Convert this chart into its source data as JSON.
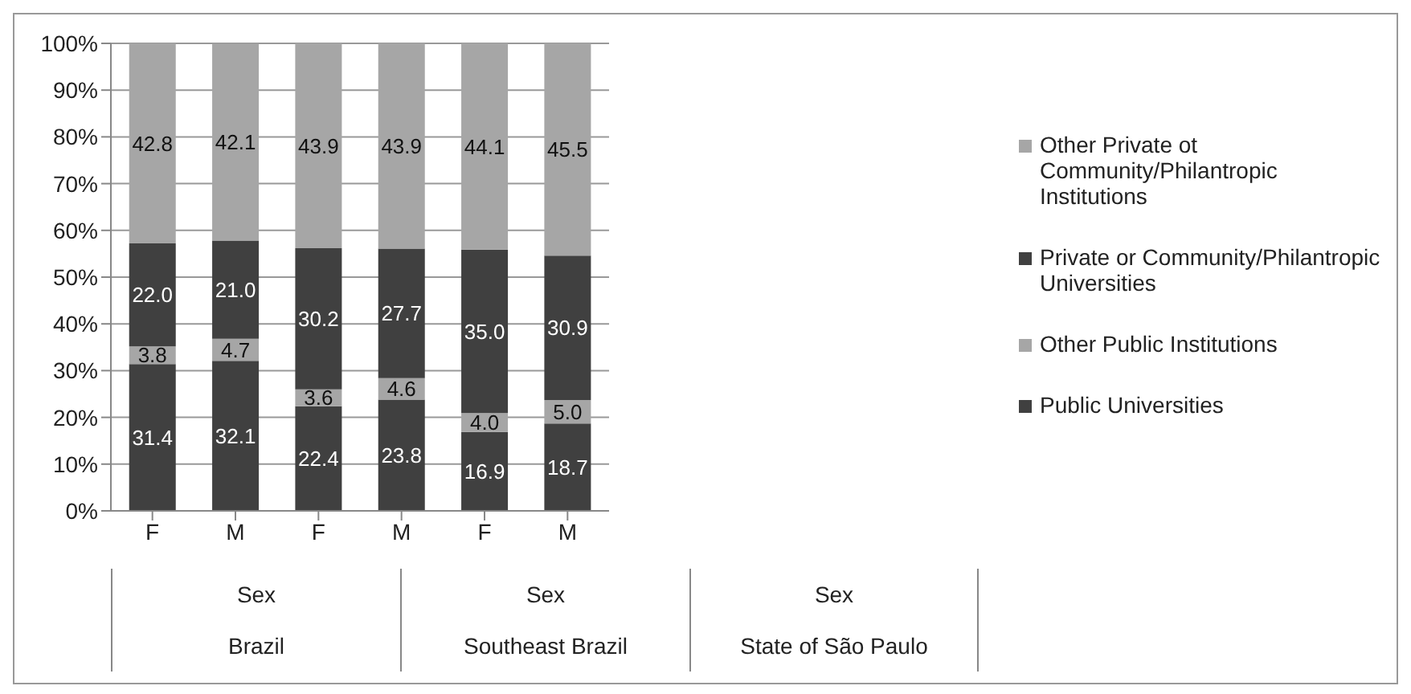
{
  "chart_data": {
    "type": "bar",
    "stacked": true,
    "categories": [
      "F",
      "M",
      "F",
      "M",
      "F",
      "M"
    ],
    "series": [
      {
        "name": "Public Universities",
        "color": "#404040",
        "values": [
          31.4,
          32.1,
          22.4,
          23.8,
          16.9,
          18.7
        ],
        "value_labels": [
          "31.4",
          "32.1",
          "22.4",
          "23.8",
          "16.9",
          "18.7"
        ]
      },
      {
        "name": "Other Public Institutions",
        "color": "#a6a6a6",
        "values": [
          3.8,
          4.7,
          3.6,
          4.6,
          4.0,
          5.0
        ],
        "value_labels": [
          "3.8",
          "4.7",
          "3.6",
          "4.6",
          "4.0",
          "5.0"
        ]
      },
      {
        "name": "Private or Community/Philantropic Universities",
        "color": "#404040",
        "values": [
          22.0,
          21.0,
          30.2,
          27.7,
          35.0,
          30.9
        ],
        "value_labels": [
          "22.0",
          "21.0",
          "30.2",
          "27.7",
          "35.0",
          "30.9"
        ]
      },
      {
        "name": "Other Private ot Community/Philantropic Institutions",
        "color": "#a6a6a6",
        "values": [
          42.8,
          42.1,
          43.9,
          43.9,
          44.1,
          45.5
        ],
        "value_labels": [
          "42.8",
          "42.1",
          "43.9",
          "43.9",
          "44.1",
          "45.5"
        ]
      }
    ],
    "annotations": [
      "Sex",
      "Sex",
      "Sex",
      "Brazil",
      "Southeast Brazil",
      "State of São Paulo"
    ],
    "ylim": [
      0,
      100
    ],
    "yticks": [
      {
        "value": 0,
        "label": "0%"
      },
      {
        "value": 10,
        "label": "10%"
      },
      {
        "value": 20,
        "label": "20%"
      },
      {
        "value": 30,
        "label": "30%"
      },
      {
        "value": 40,
        "label": "40%"
      },
      {
        "value": 50,
        "label": "50%"
      },
      {
        "value": 60,
        "label": "60%"
      },
      {
        "value": 70,
        "label": "70%"
      },
      {
        "value": 80,
        "label": "80%"
      },
      {
        "value": 90,
        "label": "90%"
      },
      {
        "value": 100,
        "label": "100%"
      }
    ],
    "grid": "y",
    "legend": "right"
  }
}
